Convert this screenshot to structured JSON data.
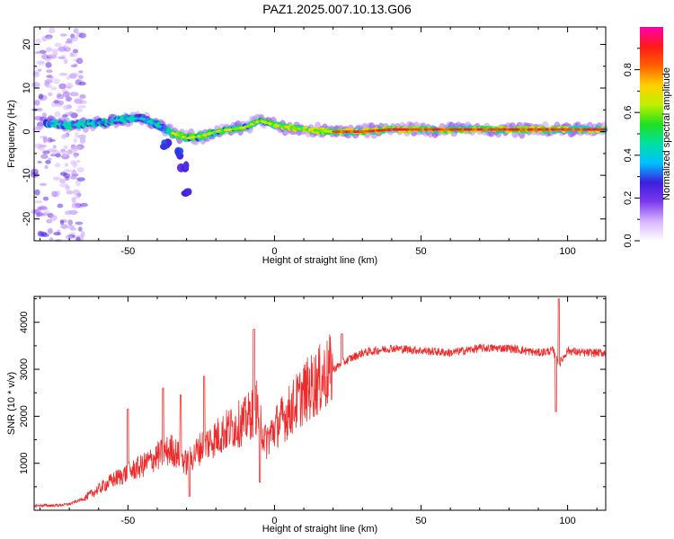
{
  "title": "PAZ1.2025.007.10.13.G06",
  "chart_data": [
    {
      "type": "heatmap",
      "xlabel": "Height of straight line (km)",
      "ylabel": "Frequency (Hz)",
      "xlim": [
        -82,
        113
      ],
      "ylim": [
        -25,
        24
      ],
      "xticks": [
        -50,
        0,
        50,
        100
      ],
      "yticks": [
        -20,
        -10,
        0,
        10,
        20
      ],
      "colorbar": {
        "label": "Normalized spectral amplitude",
        "range": [
          0,
          1
        ],
        "ticks": [
          "0.0",
          "0.2",
          "0.4",
          "0.6",
          "0.8"
        ],
        "colors": [
          "#ffffff",
          "#d8b4fe",
          "#7c3aed",
          "#3b1fdc",
          "#00c0ff",
          "#00e0a0",
          "#20e020",
          "#c0f000",
          "#ffd000",
          "#ff6000",
          "#ff1a1a",
          "#ff00aa"
        ]
      },
      "ridge": [
        {
          "x": -78,
          "f": 2
        },
        {
          "x": -70,
          "f": 1.5
        },
        {
          "x": -60,
          "f": 2
        },
        {
          "x": -50,
          "f": 3
        },
        {
          "x": -45,
          "f": 3
        },
        {
          "x": -40,
          "f": 1.5
        },
        {
          "x": -36,
          "f": 0
        },
        {
          "x": -30,
          "f": -1.5
        },
        {
          "x": -25,
          "f": -1
        },
        {
          "x": -20,
          "f": 0
        },
        {
          "x": -15,
          "f": 0.5
        },
        {
          "x": -10,
          "f": 1
        },
        {
          "x": -5,
          "f": 2.5
        },
        {
          "x": 0,
          "f": 1.5
        },
        {
          "x": 5,
          "f": 1
        },
        {
          "x": 10,
          "f": 0.5
        },
        {
          "x": 20,
          "f": 0
        },
        {
          "x": 30,
          "f": 0
        },
        {
          "x": 40,
          "f": 0.5
        },
        {
          "x": 50,
          "f": 0.5
        },
        {
          "x": 60,
          "f": 0.5
        },
        {
          "x": 70,
          "f": 0.5
        },
        {
          "x": 80,
          "f": 0.5
        },
        {
          "x": 90,
          "f": 0.5
        },
        {
          "x": 100,
          "f": 0.5
        },
        {
          "x": 113,
          "f": 0.5
        }
      ],
      "side_band": [
        {
          "x": -37,
          "f": -3
        },
        {
          "x": -33,
          "f": -5
        },
        {
          "x": -31,
          "f": -8
        },
        {
          "x": -30,
          "f": -14
        }
      ]
    },
    {
      "type": "line",
      "xlabel": "Height of straight line (km)",
      "ylabel": "SNR (10 * v/v)",
      "xlim": [
        -82,
        113
      ],
      "ylim": [
        0,
        4550
      ],
      "xticks": [
        -50,
        0,
        50,
        100
      ],
      "yticks": [
        1000,
        2000,
        3000,
        4000
      ],
      "line_color": "#ee2b2b",
      "series": [
        {
          "points": [
            {
              "x": -82,
              "y": 100
            },
            {
              "x": -75,
              "y": 100
            },
            {
              "x": -70,
              "y": 130
            },
            {
              "x": -65,
              "y": 250
            },
            {
              "x": -60,
              "y": 450
            },
            {
              "x": -55,
              "y": 650
            },
            {
              "x": -50,
              "y": 800
            },
            {
              "x": -45,
              "y": 950
            },
            {
              "x": -40,
              "y": 1150
            },
            {
              "x": -35,
              "y": 1300
            },
            {
              "x": -30,
              "y": 1000
            },
            {
              "x": -25,
              "y": 1350
            },
            {
              "x": -20,
              "y": 1550
            },
            {
              "x": -15,
              "y": 1750
            },
            {
              "x": -10,
              "y": 1900
            },
            {
              "x": -6,
              "y": 2200
            },
            {
              "x": -3,
              "y": 1450
            },
            {
              "x": 0,
              "y": 1750
            },
            {
              "x": 5,
              "y": 2100
            },
            {
              "x": 10,
              "y": 2500
            },
            {
              "x": 15,
              "y": 2750
            },
            {
              "x": 20,
              "y": 3000
            },
            {
              "x": 25,
              "y": 3200
            },
            {
              "x": 30,
              "y": 3350
            },
            {
              "x": 40,
              "y": 3450
            },
            {
              "x": 50,
              "y": 3400
            },
            {
              "x": 60,
              "y": 3350
            },
            {
              "x": 70,
              "y": 3450
            },
            {
              "x": 80,
              "y": 3450
            },
            {
              "x": 90,
              "y": 3350
            },
            {
              "x": 95,
              "y": 3400
            },
            {
              "x": 97,
              "y": 3100
            },
            {
              "x": 100,
              "y": 3400
            },
            {
              "x": 105,
              "y": 3350
            },
            {
              "x": 113,
              "y": 3350
            }
          ],
          "spikes": [
            {
              "x": -50,
              "y": 2150
            },
            {
              "x": -38,
              "y": 2600
            },
            {
              "x": -32,
              "y": 2450
            },
            {
              "x": -29,
              "y": 300
            },
            {
              "x": -24,
              "y": 2850
            },
            {
              "x": -7,
              "y": 3850
            },
            {
              "x": -5,
              "y": 600
            },
            {
              "x": 23,
              "y": 3750
            },
            {
              "x": 97,
              "y": 4500
            },
            {
              "x": 96,
              "y": 2100
            }
          ]
        }
      ]
    }
  ]
}
